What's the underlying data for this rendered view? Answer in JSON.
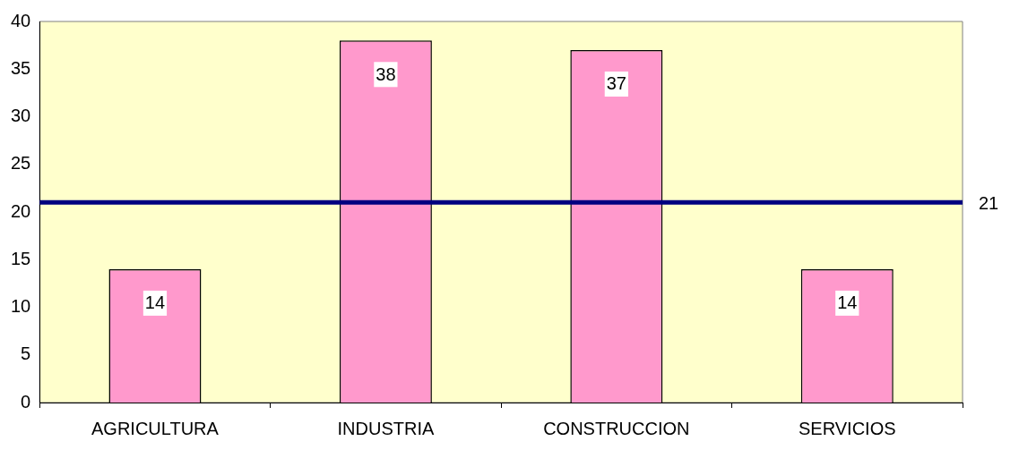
{
  "chart_data": {
    "type": "bar",
    "categories": [
      "AGRICULTURA",
      "INDUSTRIA",
      "CONSTRUCCION",
      "SERVICIOS"
    ],
    "values": [
      14,
      38,
      37,
      14
    ],
    "color": "#ff99cc",
    "ylim": [
      0,
      40
    ],
    "yticks": [
      0,
      5,
      10,
      15,
      20,
      25,
      30,
      35,
      40
    ],
    "grid": false,
    "legend": false,
    "data_labels": true,
    "ref_lines": [
      {
        "axis": "y",
        "value": 21,
        "label": "21",
        "color": "#000080"
      }
    ]
  }
}
